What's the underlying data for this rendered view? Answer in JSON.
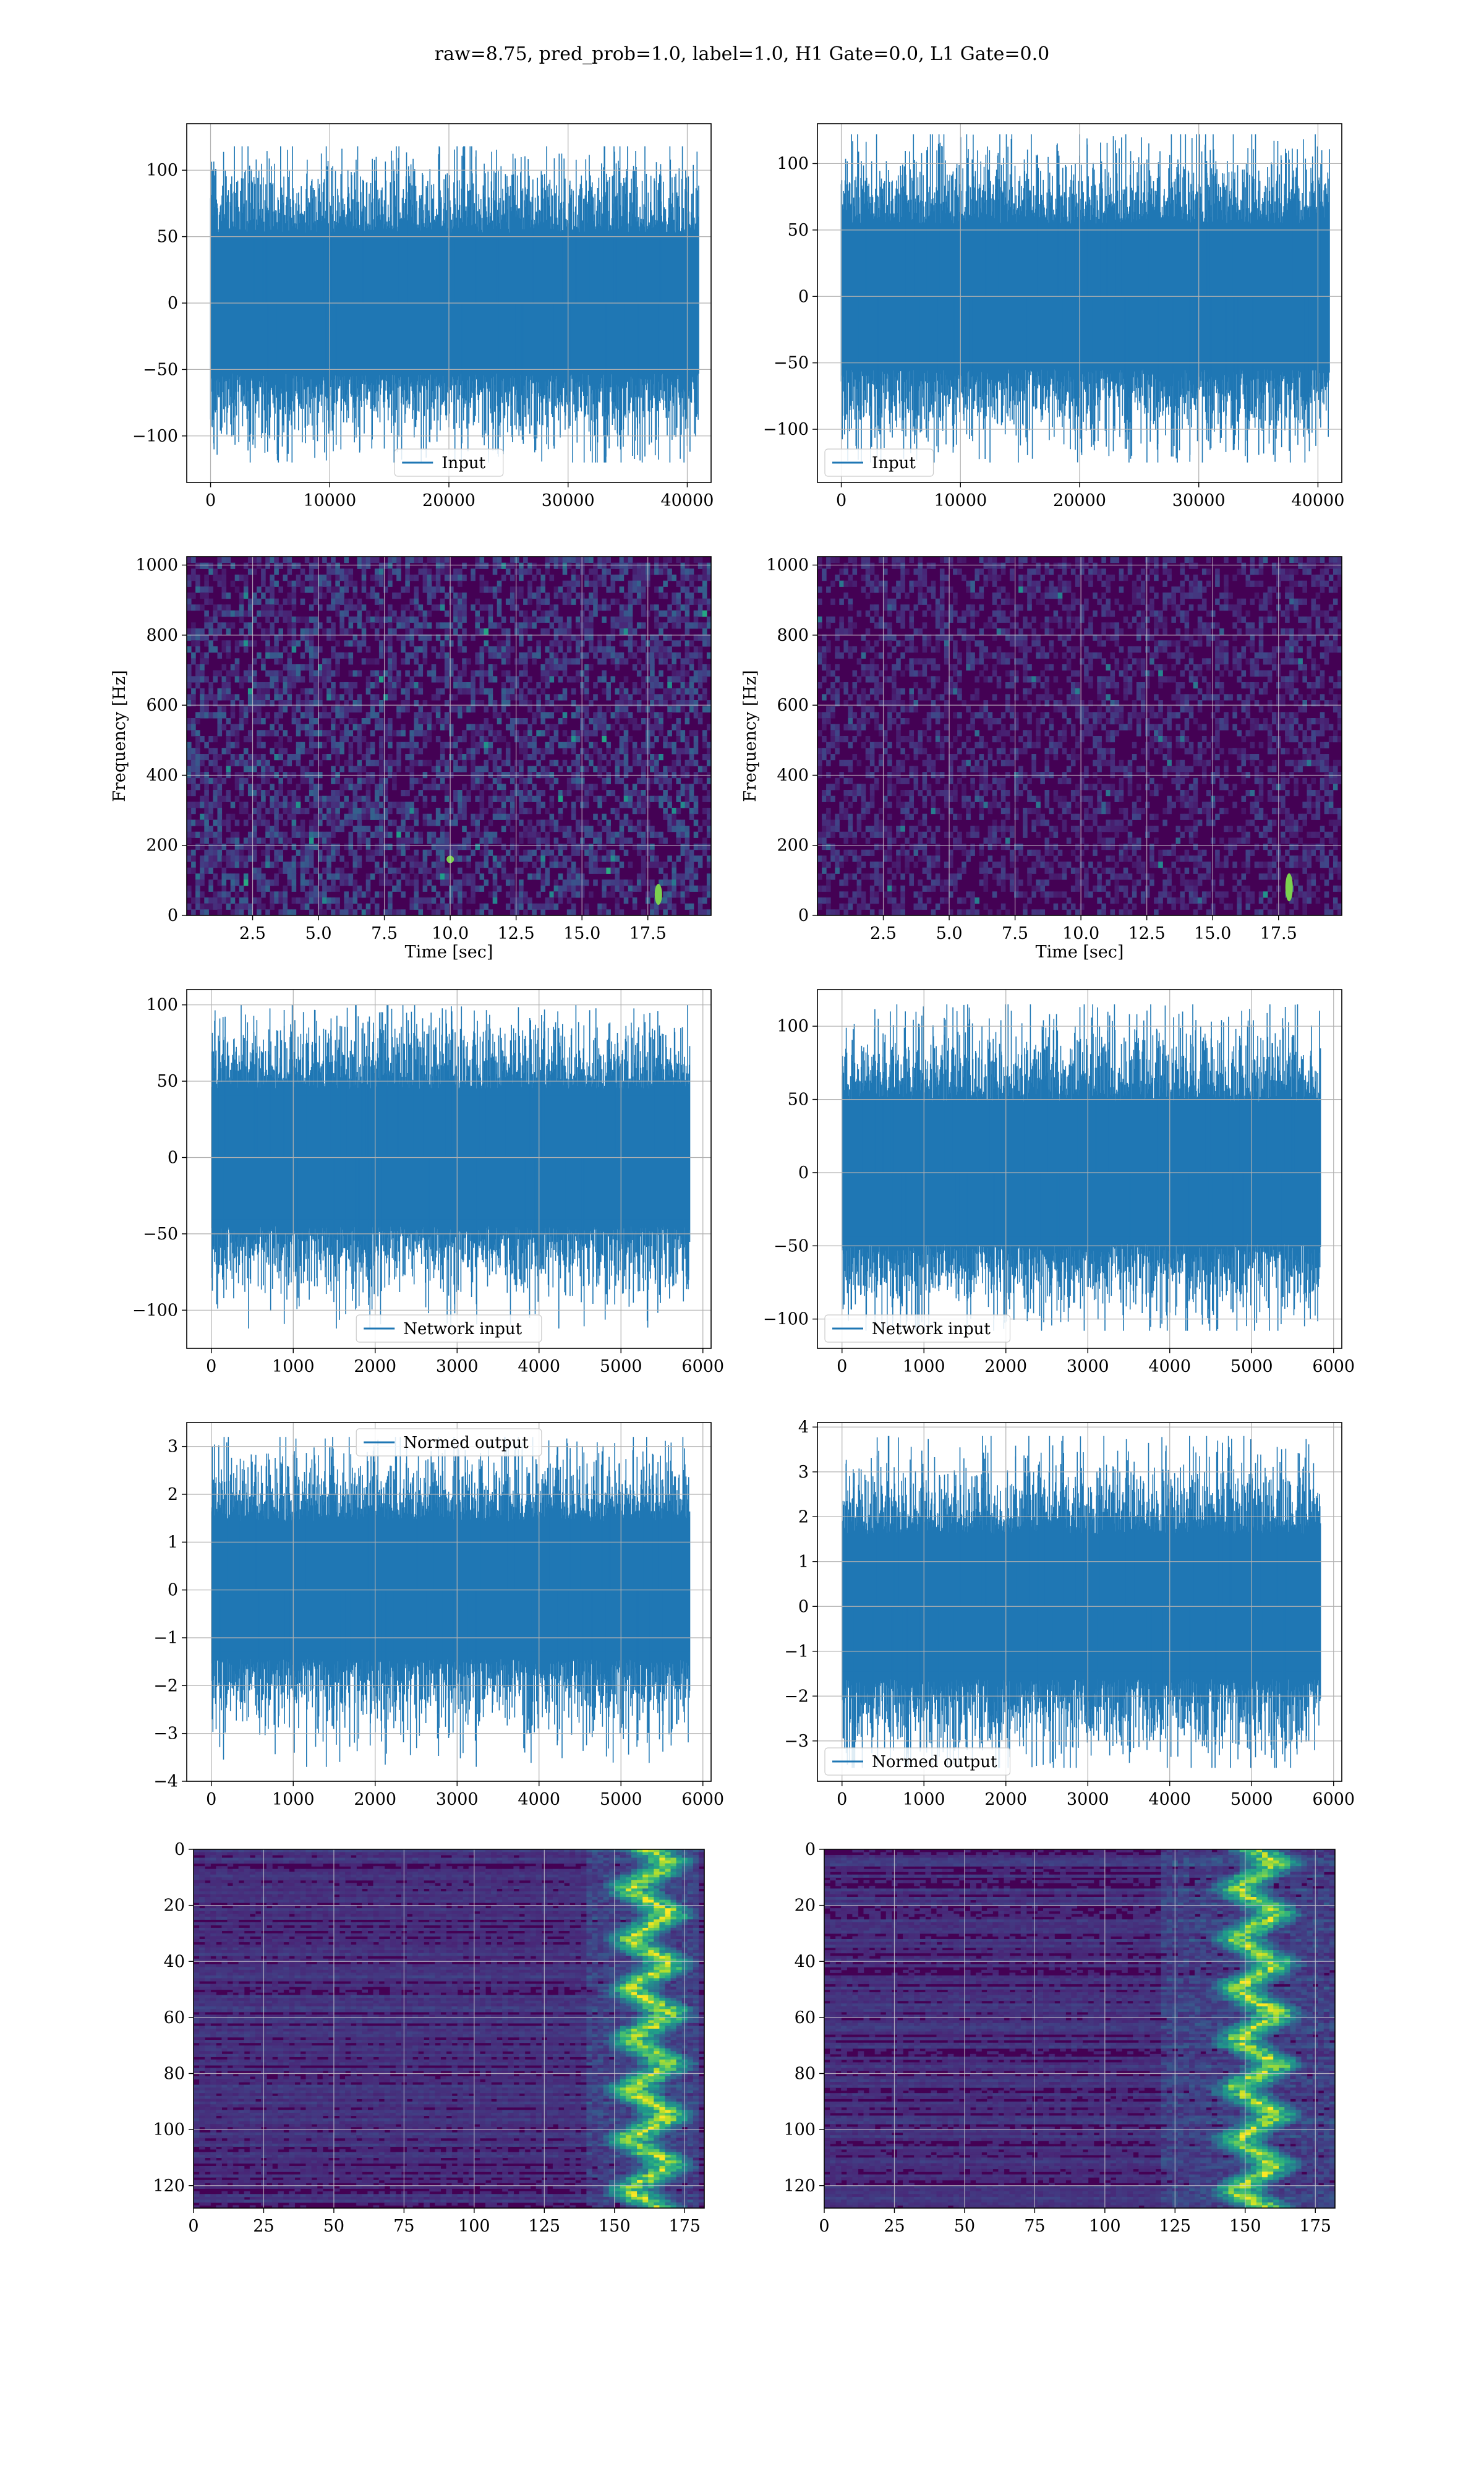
{
  "figure": {
    "title": "raw=8.75, pred_prob=1.0, label=1.0, H1 Gate=0.0, L1 Gate=0.0"
  },
  "colors": {
    "series": "#1f77b4",
    "grid": "#b0b0b0",
    "viridis_low": "#440154",
    "viridis_mid": "#21918c",
    "viridis_high": "#fde725"
  },
  "chart_data": [
    {
      "id": "h1-input",
      "type": "line",
      "title": "",
      "xlabel": "",
      "ylabel": "",
      "xlim": [
        -2000,
        42000
      ],
      "ylim": [
        -135,
        135
      ],
      "xticks": [
        0,
        10000,
        20000,
        30000,
        40000
      ],
      "yticks": [
        -100,
        -50,
        0,
        50,
        100
      ],
      "series": [
        {
          "name": "Input",
          "n_samples": 40960,
          "x_range": [
            0,
            40960
          ],
          "envelope_approx": [
            -120,
            118
          ]
        }
      ],
      "legend": "lower center",
      "grid": true
    },
    {
      "id": "l1-input",
      "type": "line",
      "title": "",
      "xlabel": "",
      "ylabel": "",
      "xlim": [
        -2000,
        42000
      ],
      "ylim": [
        -140,
        130
      ],
      "xticks": [
        0,
        10000,
        20000,
        30000,
        40000
      ],
      "yticks": [
        -100,
        -50,
        0,
        50,
        100
      ],
      "series": [
        {
          "name": "Input",
          "n_samples": 40960,
          "x_range": [
            0,
            40960
          ],
          "envelope_approx": [
            -125,
            122
          ]
        }
      ],
      "legend": "lower left",
      "grid": true
    },
    {
      "id": "h1-spectrogram",
      "type": "heatmap",
      "title": "",
      "xlabel": "Time [sec]",
      "ylabel": "Frequency [Hz]",
      "xlim": [
        0,
        19.9
      ],
      "ylim": [
        0,
        1024
      ],
      "xticks": [
        2.5,
        5.0,
        7.5,
        10.0,
        12.5,
        15.0,
        17.5
      ],
      "xtick_labels": [
        "2.5",
        "5.0",
        "7.5",
        "10.0",
        "12.5",
        "15.0",
        "17.5"
      ],
      "yticks": [
        0,
        200,
        400,
        600,
        800,
        1000
      ],
      "colormap": "viridis",
      "grid": true,
      "bright_features": [
        {
          "time_sec": 17.9,
          "freq_hz": [
            30,
            90
          ]
        },
        {
          "time_sec": 10.0,
          "freq_hz": [
            150,
            170
          ]
        }
      ]
    },
    {
      "id": "l1-spectrogram",
      "type": "heatmap",
      "title": "",
      "xlabel": "Time [sec]",
      "ylabel": "Frequency [Hz]",
      "xlim": [
        0,
        19.9
      ],
      "ylim": [
        0,
        1024
      ],
      "xticks": [
        2.5,
        5.0,
        7.5,
        10.0,
        12.5,
        15.0,
        17.5
      ],
      "xtick_labels": [
        "2.5",
        "5.0",
        "7.5",
        "10.0",
        "12.5",
        "15.0",
        "17.5"
      ],
      "yticks": [
        0,
        200,
        400,
        600,
        800,
        1000
      ],
      "colormap": "viridis",
      "grid": true,
      "bright_features": [
        {
          "time_sec": 17.9,
          "freq_hz": [
            40,
            120
          ]
        }
      ]
    },
    {
      "id": "h1-network-input",
      "type": "line",
      "title": "",
      "xlabel": "",
      "ylabel": "",
      "xlim": [
        -300,
        6100
      ],
      "ylim": [
        -125,
        110
      ],
      "xticks": [
        0,
        1000,
        2000,
        3000,
        4000,
        5000,
        6000
      ],
      "yticks": [
        -100,
        -50,
        0,
        50,
        100
      ],
      "series": [
        {
          "name": "Network input",
          "n_samples": 5840,
          "x_range": [
            0,
            5840
          ],
          "envelope_approx": [
            -112,
            100
          ]
        }
      ],
      "legend": "lower center",
      "grid": true
    },
    {
      "id": "l1-network-input",
      "type": "line",
      "title": "",
      "xlabel": "",
      "ylabel": "",
      "xlim": [
        -300,
        6100
      ],
      "ylim": [
        -120,
        125
      ],
      "xticks": [
        0,
        1000,
        2000,
        3000,
        4000,
        5000,
        6000
      ],
      "yticks": [
        -100,
        -50,
        0,
        50,
        100
      ],
      "series": [
        {
          "name": "Network input",
          "n_samples": 5840,
          "x_range": [
            0,
            5840
          ],
          "envelope_approx": [
            -108,
            115
          ]
        }
      ],
      "legend": "lower left",
      "grid": true
    },
    {
      "id": "h1-normed-output",
      "type": "line",
      "title": "",
      "xlabel": "",
      "ylabel": "",
      "xlim": [
        -300,
        6100
      ],
      "ylim": [
        -4.0,
        3.5
      ],
      "xticks": [
        0,
        1000,
        2000,
        3000,
        4000,
        5000,
        6000
      ],
      "yticks": [
        -4,
        -3,
        -2,
        -1,
        0,
        1,
        2,
        3
      ],
      "series": [
        {
          "name": "Normed output",
          "n_samples": 5840,
          "x_range": [
            0,
            5840
          ],
          "envelope_approx": [
            -3.7,
            3.2
          ]
        }
      ],
      "legend": "upper center",
      "grid": true
    },
    {
      "id": "l1-normed-output",
      "type": "line",
      "title": "",
      "xlabel": "",
      "ylabel": "",
      "xlim": [
        -300,
        6100
      ],
      "ylim": [
        -3.9,
        4.1
      ],
      "xticks": [
        0,
        1000,
        2000,
        3000,
        4000,
        5000,
        6000
      ],
      "yticks": [
        -3,
        -2,
        -1,
        0,
        1,
        2,
        3,
        4
      ],
      "series": [
        {
          "name": "Normed output",
          "n_samples": 5840,
          "x_range": [
            0,
            5840
          ],
          "envelope_approx": [
            -3.6,
            3.8
          ]
        }
      ],
      "legend": "lower left",
      "grid": true
    },
    {
      "id": "h1-feature-map",
      "type": "heatmap",
      "title": "",
      "xlabel": "",
      "ylabel": "",
      "xlim": [
        0,
        182
      ],
      "ylim": [
        128,
        0
      ],
      "xticks": [
        0,
        25,
        50,
        75,
        100,
        125,
        150,
        175
      ],
      "yticks": [
        0,
        20,
        40,
        60,
        80,
        100,
        120
      ],
      "colormap": "viridis",
      "grid": true,
      "bright_region": {
        "x": [
          150,
          175
        ],
        "y": [
          0,
          128
        ]
      }
    },
    {
      "id": "l1-feature-map",
      "type": "heatmap",
      "title": "",
      "xlabel": "",
      "ylabel": "",
      "xlim": [
        0,
        182
      ],
      "ylim": [
        128,
        0
      ],
      "xticks": [
        0,
        25,
        50,
        75,
        100,
        125,
        150,
        175
      ],
      "yticks": [
        0,
        20,
        40,
        60,
        80,
        100,
        120
      ],
      "colormap": "viridis",
      "grid": true,
      "bright_region": {
        "x": [
          130,
          178
        ],
        "y": [
          0,
          128
        ]
      }
    }
  ]
}
